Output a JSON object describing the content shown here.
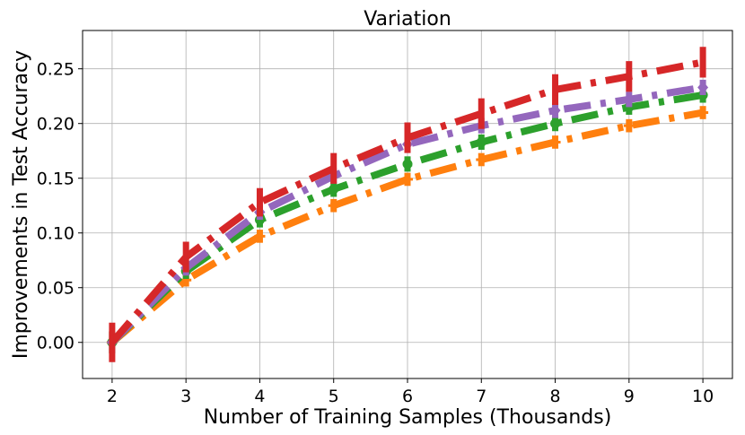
{
  "chart_data": {
    "type": "line",
    "title": "Variation",
    "xlabel": "Number of Training Samples (Thousands)",
    "ylabel": "Improvements in Test Accuracy",
    "x": [
      2,
      3,
      4,
      5,
      6,
      7,
      8,
      9,
      10
    ],
    "xticks": [
      "2",
      "3",
      "4",
      "5",
      "6",
      "7",
      "8",
      "9",
      "10"
    ],
    "yticks": [
      "0.00",
      "0.05",
      "0.10",
      "0.15",
      "0.20",
      "0.25"
    ],
    "ytick_values": [
      0.0,
      0.05,
      0.1,
      0.15,
      0.2,
      0.25
    ],
    "xlim": [
      1.6,
      10.4
    ],
    "ylim": [
      -0.033,
      0.285
    ],
    "grid": true,
    "series": [
      {
        "color": "#ff7f0e",
        "marker": "plus",
        "values": [
          0.0,
          0.057,
          0.097,
          0.125,
          0.149,
          0.167,
          0.183,
          0.198,
          0.21
        ],
        "errors": [
          0.01,
          0.006,
          0.006,
          0.006,
          0.006,
          0.006,
          0.006,
          0.006,
          0.006
        ]
      },
      {
        "color": "#2ca02c",
        "marker": "circle",
        "values": [
          0.0,
          0.065,
          0.112,
          0.14,
          0.163,
          0.183,
          0.2,
          0.215,
          0.226
        ],
        "errors": [
          0.01,
          0.007,
          0.007,
          0.007,
          0.007,
          0.007,
          0.007,
          0.007,
          0.007
        ]
      },
      {
        "color": "#9467bd",
        "marker": "diamond",
        "values": [
          0.0,
          0.068,
          0.119,
          0.152,
          0.181,
          0.198,
          0.212,
          0.222,
          0.233
        ],
        "errors": [
          0.01,
          0.007,
          0.007,
          0.007,
          0.007,
          0.007,
          0.007,
          0.007,
          0.007
        ]
      },
      {
        "color": "#d62728",
        "marker": "vline",
        "values": [
          0.0,
          0.078,
          0.128,
          0.159,
          0.187,
          0.209,
          0.231,
          0.243,
          0.256
        ],
        "errors": [
          0.018,
          0.014,
          0.013,
          0.014,
          0.014,
          0.014,
          0.014,
          0.014,
          0.014
        ]
      }
    ]
  }
}
